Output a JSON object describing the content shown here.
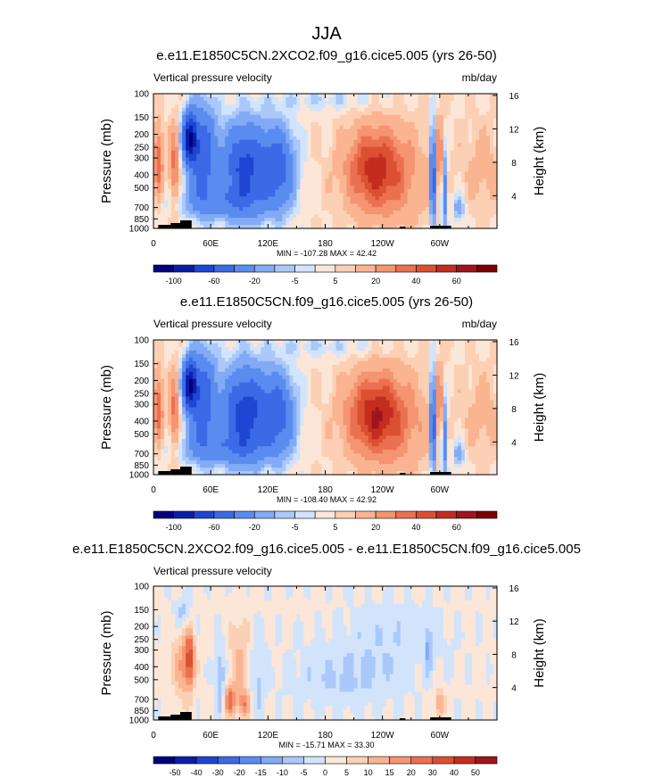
{
  "figure_title": "JJA",
  "colors": {
    "ramp_main": [
      "#00007f",
      "#0b1ea8",
      "#1e46d2",
      "#3c6ae6",
      "#5a8cf0",
      "#82aaf5",
      "#aac8fa",
      "#d2e4fc",
      "#fbe6d7",
      "#fcd0b4",
      "#fab491",
      "#f59470",
      "#eb7050",
      "#dc5032",
      "#c32d1e",
      "#a0141e",
      "#7d0000"
    ],
    "ramp_diff": [
      "#00007f",
      "#0b1ea8",
      "#1e46d2",
      "#3c6ae6",
      "#5a8cf0",
      "#82aaf5",
      "#aac8fa",
      "#d2e4fc",
      "#fbe6d7",
      "#fcd0b4",
      "#fab491",
      "#f59470",
      "#eb7050",
      "#dc5032",
      "#c32d1e",
      "#a0141e",
      "#7d0000"
    ],
    "topography": "#000000"
  },
  "chart_data": [
    {
      "type": "heatmap",
      "title": "e.e11.E1850C5CN.2XCO2.f09_g16.cice5.005 (yrs 26-50)",
      "left_label": "Vertical pressure velocity",
      "right_label": "mb/day",
      "ylabel": "Pressure (mb)",
      "y2label": "Height (km)",
      "pressure_ticks": [
        100,
        150,
        200,
        250,
        300,
        400,
        500,
        700,
        850,
        1000
      ],
      "height_ticks": [
        4,
        8,
        12,
        16
      ],
      "lon_ticks": [
        "0",
        "60E",
        "120E",
        "180",
        "120W",
        "60W"
      ],
      "stats": "MIN = -107.28  MAX =  42.42",
      "colorbar_labels": [
        "-100",
        "-60",
        "-20",
        "-5",
        "5",
        "20",
        "40",
        "60"
      ],
      "field": "ramp_main"
    },
    {
      "type": "heatmap",
      "title": "e.e11.E1850C5CN.f09_g16.cice5.005 (yrs 26-50)",
      "left_label": "Vertical pressure velocity",
      "right_label": "mb/day",
      "ylabel": "Pressure (mb)",
      "y2label": "Height (km)",
      "pressure_ticks": [
        100,
        150,
        200,
        250,
        300,
        400,
        500,
        700,
        850,
        1000
      ],
      "height_ticks": [
        4,
        8,
        12,
        16
      ],
      "lon_ticks": [
        "0",
        "60E",
        "120E",
        "180",
        "120W",
        "60W"
      ],
      "stats": "MIN = -108.40  MAX =  42.92",
      "colorbar_labels": [
        "-100",
        "-60",
        "-20",
        "-5",
        "5",
        "20",
        "40",
        "60"
      ],
      "field": "ramp_main"
    },
    {
      "type": "heatmap",
      "title": "e.e11.E1850C5CN.2XCO2.f09_g16.cice5.005 - e.e11.E1850C5CN.f09_g16.cice5.005",
      "left_label": "Vertical pressure velocity",
      "right_label": "",
      "ylabel": "Pressure (mb)",
      "y2label": "Height (km)",
      "pressure_ticks": [
        100,
        150,
        200,
        250,
        300,
        400,
        500,
        700,
        850,
        1000
      ],
      "height_ticks": [
        4,
        8,
        12,
        16
      ],
      "lon_ticks": [
        "0",
        "60E",
        "120E",
        "180",
        "120W",
        "60W"
      ],
      "stats": "MIN = -15.71  MAX =  33.30",
      "colorbar_labels": [
        "-50",
        "-40",
        "-30",
        "-20",
        "-15",
        "-10",
        "-5",
        "0",
        "5",
        "10",
        "15",
        "20",
        "30",
        "40",
        "50"
      ],
      "field": "ramp_diff"
    }
  ]
}
